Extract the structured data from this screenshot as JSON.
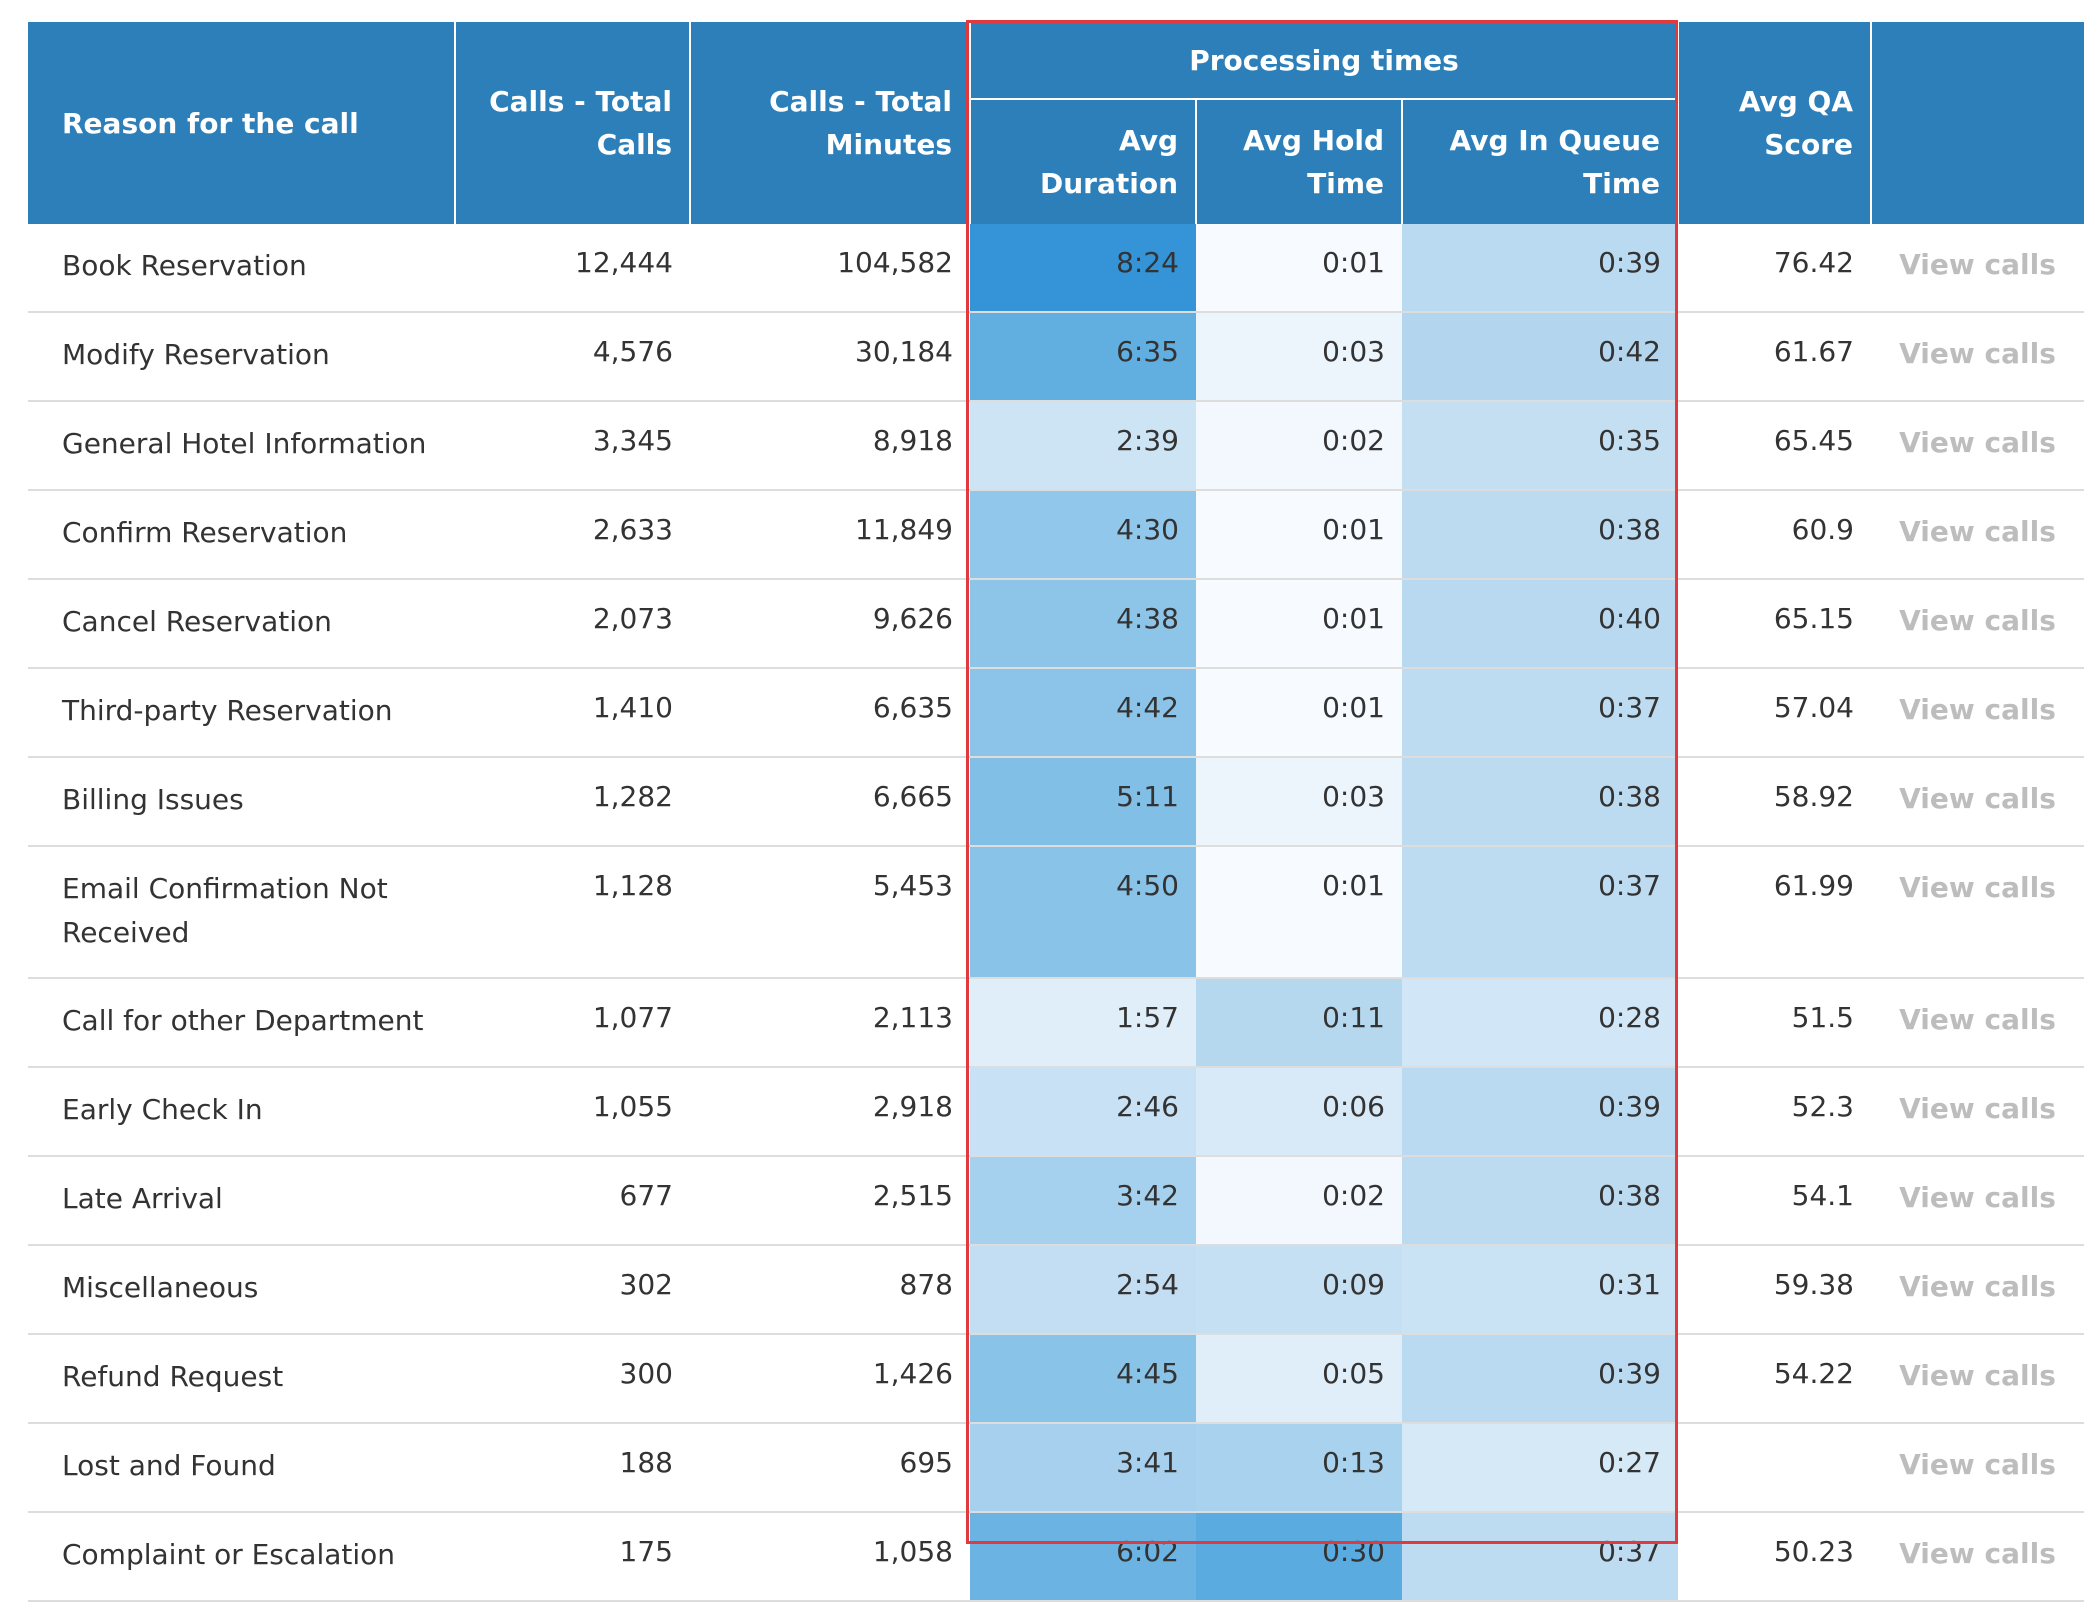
{
  "header": {
    "reason": "Reason for the call",
    "total_calls": "Calls - Total Calls",
    "total_minutes": "Calls - Total Minutes",
    "group": "Processing times",
    "avg_duration": "Avg Duration",
    "avg_hold": "Avg Hold Time",
    "avg_queue": "Avg In Queue Time",
    "avg_qa": "Avg QA Score"
  },
  "link_label": "View calls",
  "rows": [
    {
      "reason": "Book Reservation",
      "calls": "12,444",
      "minutes": "104,582",
      "dur": "8:24",
      "hold": "0:01",
      "queue": "0:39",
      "qa": "76.42",
      "dur_color": "#3594d7",
      "hold_color": "#f7fbff",
      "queue_color": "#b9daf0"
    },
    {
      "reason": "Modify Reservation",
      "calls": "4,576",
      "minutes": "30,184",
      "dur": "6:35",
      "hold": "0:03",
      "queue": "0:42",
      "qa": "61.67",
      "dur_color": "#61afe1",
      "hold_color": "#edf5fc",
      "queue_color": "#b3d6ee"
    },
    {
      "reason": "General Hotel Information",
      "calls": "3,345",
      "minutes": "8,918",
      "dur": "2:39",
      "hold": "0:02",
      "queue": "0:35",
      "qa": "65.45",
      "dur_color": "#cde4f5",
      "hold_color": "#f2f8fd",
      "queue_color": "#c4dff2"
    },
    {
      "reason": "Confirm Reservation",
      "calls": "2,633",
      "minutes": "11,849",
      "dur": "4:30",
      "hold": "0:01",
      "queue": "0:38",
      "qa": "60.9",
      "dur_color": "#91c7ea",
      "hold_color": "#f7fbff",
      "queue_color": "#bcdbf1"
    },
    {
      "reason": "Cancel Reservation",
      "calls": "2,073",
      "minutes": "9,626",
      "dur": "4:38",
      "hold": "0:01",
      "queue": "0:40",
      "qa": "65.15",
      "dur_color": "#8dc5e9",
      "hold_color": "#f7fbff",
      "queue_color": "#b8d9f0"
    },
    {
      "reason": "Third-party Reservation",
      "calls": "1,410",
      "minutes": "6,635",
      "dur": "4:42",
      "hold": "0:01",
      "queue": "0:37",
      "qa": "57.04",
      "dur_color": "#8cc4e9",
      "hold_color": "#f7fbff",
      "queue_color": "#bedcf1"
    },
    {
      "reason": "Billing Issues",
      "calls": "1,282",
      "minutes": "6,665",
      "dur": "5:11",
      "hold": "0:03",
      "queue": "0:38",
      "qa": "58.92",
      "dur_color": "#82bfe7",
      "hold_color": "#edf5fc",
      "queue_color": "#bcdbf1"
    },
    {
      "reason": "Email Confirmation Not Received",
      "calls": "1,128",
      "minutes": "5,453",
      "dur": "4:50",
      "hold": "0:01",
      "queue": "0:37",
      "qa": "61.99",
      "dur_color": "#89c3e8",
      "hold_color": "#f7fbff",
      "queue_color": "#bedcf1"
    },
    {
      "reason": "Call for other Department",
      "calls": "1,077",
      "minutes": "2,113",
      "dur": "1:57",
      "hold": "0:11",
      "queue": "0:28",
      "qa": "51.5",
      "dur_color": "#e0eef9",
      "hold_color": "#b6d8ef",
      "queue_color": "#d1e6f6"
    },
    {
      "reason": "Early Check In",
      "calls": "1,055",
      "minutes": "2,918",
      "dur": "2:46",
      "hold": "0:06",
      "queue": "0:39",
      "qa": "52.3",
      "dur_color": "#c8e1f4",
      "hold_color": "#d8eaf7",
      "queue_color": "#b9daf0"
    },
    {
      "reason": "Late Arrival",
      "calls": "677",
      "minutes": "2,515",
      "dur": "3:42",
      "hold": "0:02",
      "queue": "0:38",
      "qa": "54.1",
      "dur_color": "#a5d0ee",
      "hold_color": "#f2f8fd",
      "queue_color": "#bcdbf1"
    },
    {
      "reason": "Miscellaneous",
      "calls": "302",
      "minutes": "878",
      "dur": "2:54",
      "hold": "0:09",
      "queue": "0:31",
      "qa": "59.38",
      "dur_color": "#c3def3",
      "hold_color": "#c6e0f3",
      "queue_color": "#c9e2f4"
    },
    {
      "reason": "Refund Request",
      "calls": "300",
      "minutes": "1,426",
      "dur": "4:45",
      "hold": "0:05",
      "queue": "0:39",
      "qa": "54.22",
      "dur_color": "#8ac3e8",
      "hold_color": "#e0eef9",
      "queue_color": "#b9daf0"
    },
    {
      "reason": "Lost and Found",
      "calls": "188",
      "minutes": "695",
      "dur": "3:41",
      "hold": "0:13",
      "queue": "0:27",
      "qa": "",
      "dur_color": "#a6d0ee",
      "hold_color": "#a9d2ee",
      "queue_color": "#d6e9f6"
    },
    {
      "reason": "Complaint or Escalation",
      "calls": "175",
      "minutes": "1,058",
      "dur": "6:02",
      "hold": "0:30",
      "queue": "0:37",
      "qa": "50.23",
      "dur_color": "#6bb3e2",
      "hold_color": "#5aabdf",
      "queue_color": "#bedcf1"
    }
  ]
}
